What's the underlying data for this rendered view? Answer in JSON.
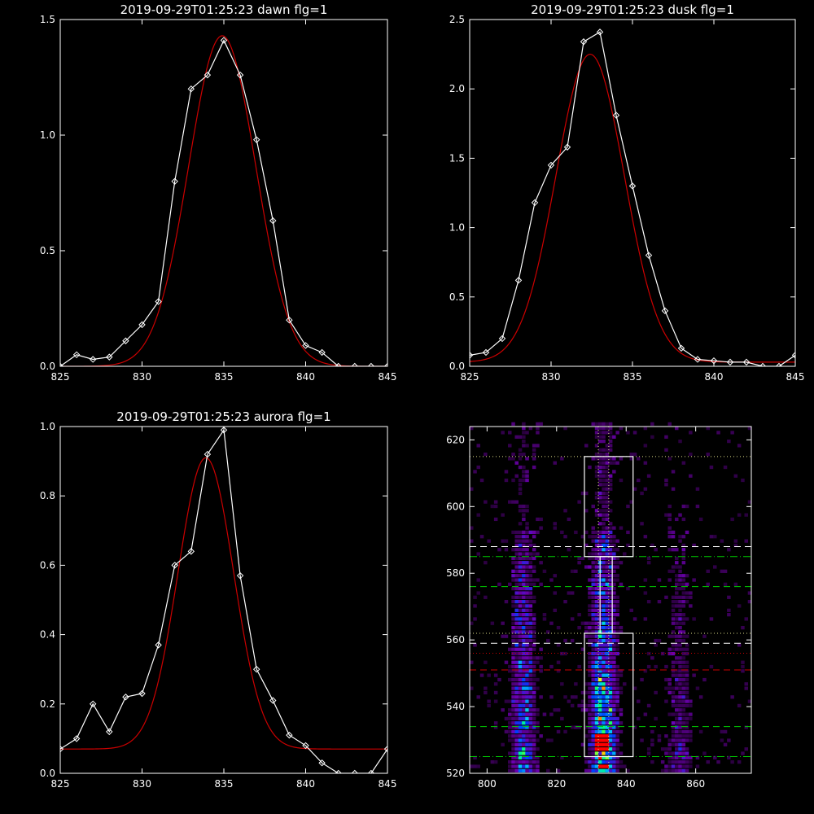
{
  "chart_data": [
    {
      "type": "line",
      "title": "2019-09-29T01:25:23 dawn flg=1",
      "xlim": [
        825,
        845
      ],
      "ylim": [
        0,
        1.5
      ],
      "xticks": [
        "825",
        "830",
        "835",
        "840",
        "845"
      ],
      "yticks": [
        "0.0",
        "0.5",
        "1.0",
        "1.5"
      ],
      "grid": false,
      "series": [
        {
          "kind": "observed",
          "color": "#ffffff",
          "marker": "diamond",
          "x": [
            825,
            826,
            827,
            828,
            829,
            830,
            831,
            832,
            833,
            834,
            835,
            836,
            837,
            838,
            839,
            840,
            841,
            842,
            843,
            844,
            845
          ],
          "y": [
            0.0,
            0.05,
            0.03,
            0.04,
            0.11,
            0.18,
            0.28,
            0.8,
            1.2,
            1.26,
            1.41,
            1.26,
            0.98,
            0.63,
            0.2,
            0.09,
            0.06,
            0.0,
            0.0,
            0.0,
            0.0
          ]
        },
        {
          "kind": "fit",
          "color": "#cc0000",
          "amplitude": 1.43,
          "center": 834.9,
          "sigma": 2.05,
          "baseline": 0.0
        }
      ]
    },
    {
      "type": "line",
      "title": "2019-09-29T01:25:23 dusk flg=1",
      "xlim": [
        825,
        845
      ],
      "ylim": [
        0,
        2.5
      ],
      "xticks": [
        "825",
        "830",
        "835",
        "840",
        "845"
      ],
      "yticks": [
        "0.0",
        "0.5",
        "1.0",
        "1.5",
        "2.0",
        "2.5"
      ],
      "grid": false,
      "series": [
        {
          "kind": "observed",
          "color": "#ffffff",
          "marker": "diamond",
          "x": [
            825,
            826,
            827,
            828,
            829,
            830,
            831,
            832,
            833,
            834,
            835,
            836,
            837,
            838,
            839,
            840,
            841,
            842,
            843,
            844,
            845
          ],
          "y": [
            0.08,
            0.1,
            0.2,
            0.62,
            1.18,
            1.45,
            1.58,
            2.34,
            2.41,
            1.81,
            1.3,
            0.8,
            0.4,
            0.13,
            0.05,
            0.04,
            0.03,
            0.03,
            0.0,
            0.0,
            0.08
          ]
        },
        {
          "kind": "fit",
          "color": "#cc0000",
          "amplitude": 2.22,
          "center": 832.4,
          "sigma": 2.1,
          "baseline": 0.03
        }
      ]
    },
    {
      "type": "line",
      "title": "2019-09-29T01:25:23 aurora flg=1",
      "xlim": [
        825,
        845
      ],
      "ylim": [
        0,
        1.0
      ],
      "xticks": [
        "825",
        "830",
        "835",
        "840",
        "845"
      ],
      "yticks": [
        "0.0",
        "0.2",
        "0.4",
        "0.6",
        "0.8",
        "1.0"
      ],
      "grid": false,
      "series": [
        {
          "kind": "observed",
          "color": "#ffffff",
          "marker": "diamond",
          "x": [
            825,
            826,
            827,
            828,
            829,
            830,
            831,
            832,
            833,
            834,
            835,
            836,
            837,
            838,
            839,
            840,
            841,
            842,
            843,
            844,
            845
          ],
          "y": [
            0.07,
            0.1,
            0.2,
            0.12,
            0.22,
            0.23,
            0.37,
            0.6,
            0.64,
            0.92,
            0.99,
            0.57,
            0.3,
            0.21,
            0.11,
            0.08,
            0.03,
            0.0,
            0.0,
            0.0,
            0.07
          ]
        },
        {
          "kind": "fit",
          "color": "#cc0000",
          "amplitude": 0.84,
          "center": 833.9,
          "sigma": 1.7,
          "baseline": 0.07
        }
      ]
    },
    {
      "type": "heatmap",
      "title": "",
      "xlim": [
        795,
        876
      ],
      "ylim": [
        520,
        624
      ],
      "xticks": [
        "800",
        "820",
        "840",
        "860"
      ],
      "yticks": [
        "520",
        "540",
        "560",
        "580",
        "600",
        "620"
      ],
      "colormap": "rainbow (black-purple-blue-cyan-green-yellow-red)",
      "emission_columns_x": [
        810,
        833,
        855
      ],
      "boxes": [
        {
          "x": [
            828,
            842
          ],
          "y": [
            585,
            615
          ],
          "color": "#ffffff"
        },
        {
          "x": [
            828,
            842
          ],
          "y": [
            525,
            562
          ],
          "color": "#ffffff"
        },
        {
          "x": [
            832.5,
            836
          ],
          "y": [
            562,
            585
          ],
          "color": "#ffffff"
        }
      ],
      "hlines": [
        {
          "y": 615,
          "color": "#dddd88",
          "style": "dotted"
        },
        {
          "y": 588,
          "color": "#ffffff",
          "style": "dashed"
        },
        {
          "y": 585,
          "color": "#00cc00",
          "style": "dash-dot"
        },
        {
          "y": 576,
          "color": "#00cc00",
          "style": "dashed"
        },
        {
          "y": 562,
          "color": "#dddd88",
          "style": "dotted"
        },
        {
          "y": 559,
          "color": "#ffffff",
          "style": "dashed"
        },
        {
          "y": 556,
          "color": "#cc0000",
          "style": "dotted"
        },
        {
          "y": 551,
          "color": "#cc0000",
          "style": "dashed"
        },
        {
          "y": 534,
          "color": "#00cc00",
          "style": "dashed"
        },
        {
          "y": 525,
          "color": "#00cc00",
          "style": "dash-dot"
        }
      ],
      "vlines": [
        {
          "x": 832,
          "color": "#dddd88",
          "style": "dotted"
        },
        {
          "x": 835,
          "color": "#dddd88",
          "style": "dotted"
        }
      ]
    }
  ]
}
